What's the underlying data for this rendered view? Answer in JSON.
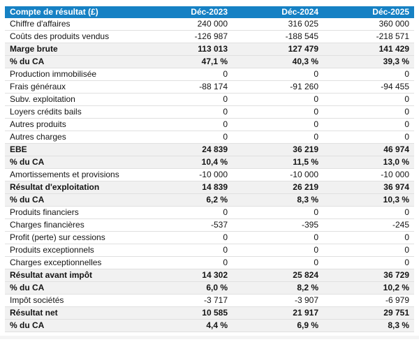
{
  "theme": {
    "header_bg": "#1681c4",
    "header_text": "#ffffff",
    "total_row_bg": "#f1f1f1",
    "row_border": "#e0e0e0",
    "text_color": "#141414"
  },
  "table": {
    "columns": [
      "Compte de résultat (£)",
      "Déc-2023",
      "Déc-2024",
      "Déc-2025"
    ],
    "rows": [
      {
        "label": "Chiffre d'affaires",
        "values": [
          "240 000",
          "316 025",
          "360 000"
        ],
        "emphasis": false
      },
      {
        "label": "Coûts des produits vendus",
        "values": [
          "-126 987",
          "-188 545",
          "-218 571"
        ],
        "emphasis": false
      },
      {
        "label": "Marge brute",
        "values": [
          "113 013",
          "127 479",
          "141 429"
        ],
        "emphasis": true
      },
      {
        "label": "% du CA",
        "values": [
          "47,1 %",
          "40,3 %",
          "39,3 %"
        ],
        "emphasis": true
      },
      {
        "label": "Production immobilisée",
        "values": [
          "0",
          "0",
          "0"
        ],
        "emphasis": false
      },
      {
        "label": "Frais généraux",
        "values": [
          "-88 174",
          "-91 260",
          "-94 455"
        ],
        "emphasis": false
      },
      {
        "label": "Subv. exploitation",
        "values": [
          "0",
          "0",
          "0"
        ],
        "emphasis": false
      },
      {
        "label": "Loyers crédits bails",
        "values": [
          "0",
          "0",
          "0"
        ],
        "emphasis": false
      },
      {
        "label": "Autres produits",
        "values": [
          "0",
          "0",
          "0"
        ],
        "emphasis": false
      },
      {
        "label": "Autres charges",
        "values": [
          "0",
          "0",
          "0"
        ],
        "emphasis": false
      },
      {
        "label": "EBE",
        "values": [
          "24 839",
          "36 219",
          "46 974"
        ],
        "emphasis": true
      },
      {
        "label": "% du CA",
        "values": [
          "10,4 %",
          "11,5 %",
          "13,0 %"
        ],
        "emphasis": true
      },
      {
        "label": "Amortissements et provisions",
        "values": [
          "-10 000",
          "-10 000",
          "-10 000"
        ],
        "emphasis": false
      },
      {
        "label": "Résultat d'exploitation",
        "values": [
          "14 839",
          "26 219",
          "36 974"
        ],
        "emphasis": true
      },
      {
        "label": "% du CA",
        "values": [
          "6,2 %",
          "8,3 %",
          "10,3 %"
        ],
        "emphasis": true
      },
      {
        "label": "Produits financiers",
        "values": [
          "0",
          "0",
          "0"
        ],
        "emphasis": false
      },
      {
        "label": "Charges financières",
        "values": [
          "-537",
          "-395",
          "-245"
        ],
        "emphasis": false
      },
      {
        "label": "Profit (perte) sur cessions",
        "values": [
          "0",
          "0",
          "0"
        ],
        "emphasis": false
      },
      {
        "label": "Produits exceptionnels",
        "values": [
          "0",
          "0",
          "0"
        ],
        "emphasis": false
      },
      {
        "label": "Charges exceptionnelles",
        "values": [
          "0",
          "0",
          "0"
        ],
        "emphasis": false
      },
      {
        "label": "Résultat avant impôt",
        "values": [
          "14 302",
          "25 824",
          "36 729"
        ],
        "emphasis": true
      },
      {
        "label": "% du CA",
        "values": [
          "6,0 %",
          "8,2 %",
          "10,2 %"
        ],
        "emphasis": true
      },
      {
        "label": "Impôt sociétés",
        "values": [
          "-3 717",
          "-3 907",
          "-6 979"
        ],
        "emphasis": false
      },
      {
        "label": "Résultat net",
        "values": [
          "10 585",
          "21 917",
          "29 751"
        ],
        "emphasis": true
      },
      {
        "label": "% du CA",
        "values": [
          "4,4 %",
          "6,9 %",
          "8,3 %"
        ],
        "emphasis": true
      }
    ]
  },
  "chart_data": {
    "type": "table",
    "title": "Compte de résultat (£)",
    "columns": [
      "Compte de résultat (£)",
      "Déc-2023",
      "Déc-2024",
      "Déc-2025"
    ],
    "rows": [
      [
        "Chiffre d'affaires",
        240000,
        316025,
        360000
      ],
      [
        "Coûts des produits vendus",
        -126987,
        -188545,
        -218571
      ],
      [
        "Marge brute",
        113013,
        127479,
        141429
      ],
      [
        "% du CA (marge brute)",
        "47,1 %",
        "40,3 %",
        "39,3 %"
      ],
      [
        "Production immobilisée",
        0,
        0,
        0
      ],
      [
        "Frais généraux",
        -88174,
        -91260,
        -94455
      ],
      [
        "Subv. exploitation",
        0,
        0,
        0
      ],
      [
        "Loyers crédits bails",
        0,
        0,
        0
      ],
      [
        "Autres produits",
        0,
        0,
        0
      ],
      [
        "Autres charges",
        0,
        0,
        0
      ],
      [
        "EBE",
        24839,
        36219,
        46974
      ],
      [
        "% du CA (EBE)",
        "10,4 %",
        "11,5 %",
        "13,0 %"
      ],
      [
        "Amortissements et provisions",
        -10000,
        -10000,
        -10000
      ],
      [
        "Résultat d'exploitation",
        14839,
        26219,
        36974
      ],
      [
        "% du CA (résultat d'exploitation)",
        "6,2 %",
        "8,3 %",
        "10,3 %"
      ],
      [
        "Produits financiers",
        0,
        0,
        0
      ],
      [
        "Charges financières",
        -537,
        -395,
        -245
      ],
      [
        "Profit (perte) sur cessions",
        0,
        0,
        0
      ],
      [
        "Produits exceptionnels",
        0,
        0,
        0
      ],
      [
        "Charges exceptionnelles",
        0,
        0,
        0
      ],
      [
        "Résultat avant impôt",
        14302,
        25824,
        36729
      ],
      [
        "% du CA (résultat avant impôt)",
        "6,0 %",
        "8,2 %",
        "10,2 %"
      ],
      [
        "Impôt sociétés",
        -3717,
        -3907,
        -6979
      ],
      [
        "Résultat net",
        10585,
        21917,
        29751
      ],
      [
        "% du CA (résultat net)",
        "4,4 %",
        "6,9 %",
        "8,3 %"
      ]
    ]
  }
}
